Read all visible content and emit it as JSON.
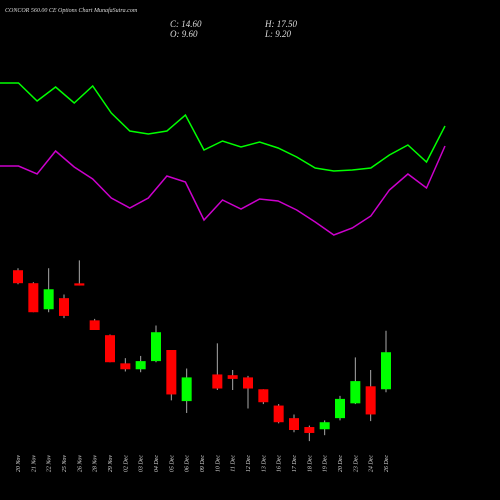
{
  "chart_data": {
    "type": "candlestick",
    "title": "CONCOR 560.00 CE Options Chart MunafaSutra.com",
    "ohlc_labels": [
      "C: 14.60",
      "H: 17.50",
      "O: 9.60",
      "L: 9.20"
    ],
    "categories": [
      "20 Nov",
      "21 Nov",
      "22 Nov",
      "25 Nov",
      "26 Nov",
      "28 Nov",
      "29 Nov",
      "02 Dec",
      "03 Dec",
      "04 Dec",
      "05 Dec",
      "06 Dec",
      "09 Dec",
      "10 Dec",
      "11 Dec",
      "12 Dec",
      "13 Dec",
      "16 Dec",
      "17 Dec",
      "18 Dec",
      "19 Dec",
      "20 Dec",
      "23 Dec",
      "24 Dec",
      "26 Dec"
    ],
    "open": [
      25.67,
      23.92,
      20.4,
      21.9,
      23.9,
      18.9,
      16.9,
      13.1,
      12.3,
      13.4,
      14.9,
      8.0,
      null,
      11.6,
      11.5,
      11.2,
      9.6,
      7.4,
      5.7,
      4.5,
      4.2,
      5.7,
      7.7,
      10.0,
      9.6
    ],
    "high": [
      25.94,
      24.05,
      25.94,
      22.4,
      27.0,
      19.1,
      17.0,
      13.8,
      14.1,
      18.2,
      14.9,
      12.4,
      null,
      15.8,
      12.2,
      11.4,
      9.6,
      7.6,
      6.2,
      4.7,
      5.4,
      8.7,
      13.9,
      12.2,
      17.5
    ],
    "low": [
      23.78,
      20.0,
      20.0,
      19.2,
      23.6,
      17.6,
      13.25,
      12.0,
      11.9,
      13.25,
      8.1,
      6.4,
      null,
      9.5,
      9.5,
      7.0,
      7.6,
      5.0,
      3.8,
      2.6,
      3.4,
      5.4,
      7.6,
      5.3,
      9.2
    ],
    "close": [
      23.92,
      20.0,
      23.1,
      19.5,
      23.6,
      17.6,
      13.25,
      12.3,
      13.4,
      17.3,
      8.9,
      11.2,
      null,
      9.7,
      11.0,
      9.7,
      7.85,
      5.15,
      4.1,
      3.7,
      5.15,
      8.3,
      10.7,
      6.2,
      14.6
    ],
    "ylim": [
      1.4,
      28.4
    ],
    "up_color": "#00ff00",
    "down_color": "#ff0000",
    "lines": {
      "ylim": [
        0,
        100
      ],
      "series": [
        {
          "color": "#00ff00",
          "values": [
            83.5,
            83.5,
            74.5,
            81.5,
            73.5,
            82,
            68.5,
            59.5,
            58,
            59.5,
            67.5,
            50,
            54.5,
            51.5,
            54,
            51,
            46.5,
            41,
            39.5,
            40,
            41,
            47.5,
            52.5,
            44,
            62
          ]
        },
        {
          "color": "#cc00cc",
          "values": [
            42,
            42,
            38,
            49.5,
            41.5,
            35.5,
            26,
            21,
            26,
            37,
            34,
            15,
            25,
            20.5,
            25.5,
            24.5,
            20,
            14,
            7.5,
            11,
            17,
            30,
            38,
            31,
            52
          ]
        }
      ]
    }
  }
}
